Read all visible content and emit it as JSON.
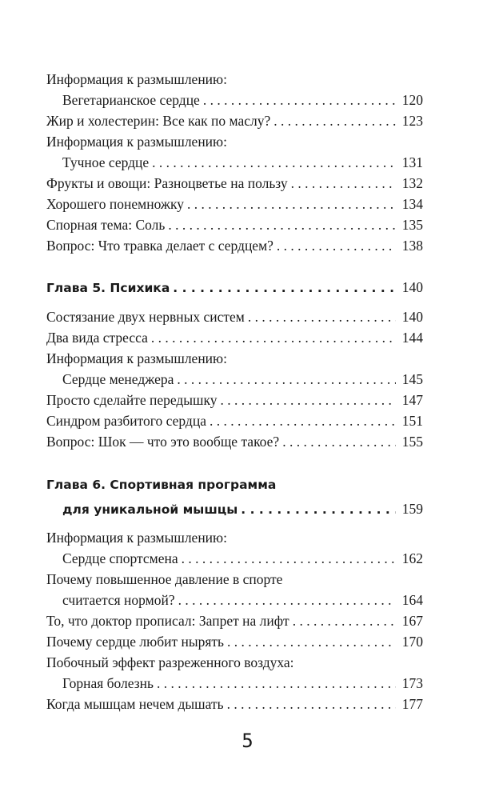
{
  "toc": [
    {
      "type": "section",
      "entries": [
        {
          "lines": [
            "Информация к размышлению:",
            "Вегетарианское сердце"
          ],
          "page": "120"
        },
        {
          "lines": [
            "Жир и холестерин: Все как по маслу?"
          ],
          "page": "123"
        },
        {
          "lines": [
            "Информация к размышлению:",
            "Тучное сердце"
          ],
          "page": "131"
        },
        {
          "lines": [
            "Фрукты и овощи: Разноцветье на пользу"
          ],
          "page": "132"
        },
        {
          "lines": [
            "Хорошего понемножку"
          ],
          "page": "134"
        },
        {
          "lines": [
            "Спорная тема: Соль"
          ],
          "page": "135"
        },
        {
          "lines": [
            "Вопрос: Что травка делает с сердцем?"
          ],
          "page": "138"
        }
      ]
    },
    {
      "type": "chapter",
      "entries": [
        {
          "lines": [
            "Глава 5. Психика"
          ],
          "page": "140"
        }
      ]
    },
    {
      "type": "section",
      "entries": [
        {
          "lines": [
            "Состязание двух нервных систем"
          ],
          "page": "140"
        },
        {
          "lines": [
            "Два вида стресса"
          ],
          "page": "144"
        },
        {
          "lines": [
            "Информация к размышлению:",
            "Сердце менеджера"
          ],
          "page": "145"
        },
        {
          "lines": [
            "Просто сделайте передышку"
          ],
          "page": "147"
        },
        {
          "lines": [
            "Синдром разбитого сердца"
          ],
          "page": "151"
        },
        {
          "lines": [
            "Вопрос: Шок — что это вообще такое?"
          ],
          "page": "155"
        }
      ]
    },
    {
      "type": "chapter",
      "entries": [
        {
          "lines": [
            "Глава 6. Спортивная программа",
            "для уникальной мышцы"
          ],
          "page": "159"
        }
      ]
    },
    {
      "type": "section",
      "entries": [
        {
          "lines": [
            "Информация к размышлению:",
            "Сердце спортсмена"
          ],
          "page": "162"
        },
        {
          "lines": [
            "Почему повышенное давление в спорте",
            "считается нормой?"
          ],
          "page": "164"
        },
        {
          "lines": [
            "То, что доктор прописал: Запрет на лифт"
          ],
          "page": "167"
        },
        {
          "lines": [
            "Почему сердце любит нырять"
          ],
          "page": "170"
        },
        {
          "lines": [
            "Побочный эффект разреженного воздуха:",
            "Горная болезнь"
          ],
          "page": "173"
        },
        {
          "lines": [
            "Когда мышцам нечем дышать"
          ],
          "page": "177"
        }
      ]
    }
  ],
  "folio": "5"
}
